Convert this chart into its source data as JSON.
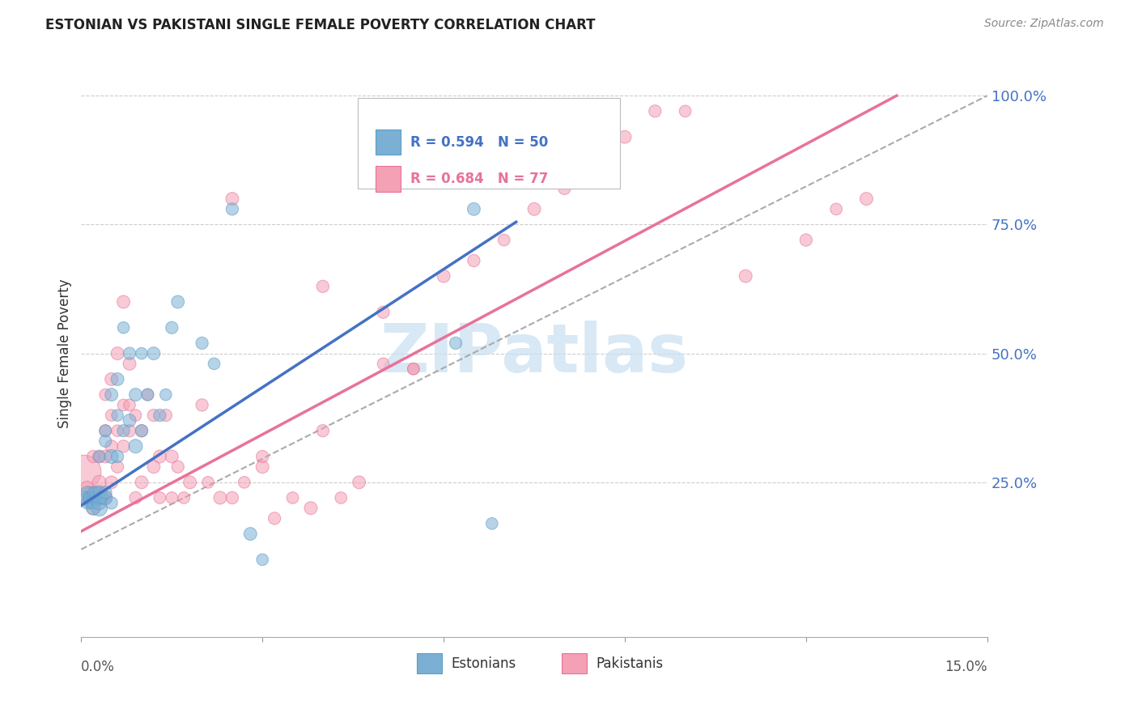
{
  "title": "ESTONIAN VS PAKISTANI SINGLE FEMALE POVERTY CORRELATION CHART",
  "source": "Source: ZipAtlas.com",
  "ylabel": "Single Female Poverty",
  "estonian_color": "#7bafd4",
  "estonian_edge_color": "#5b9fc8",
  "pakistani_color": "#f4a0b5",
  "pakistani_edge_color": "#e8729a",
  "trend_blue": "#4472C4",
  "trend_pink": "#E8729A",
  "grid_color": "#cccccc",
  "ref_line_color": "#aaaaaa",
  "background_color": "#ffffff",
  "watermark_color": "#c8dff0",
  "watermark_text": "ZIPatlas",
  "right_tick_color": "#4472C4",
  "xmin": 0.0,
  "xmax": 0.15,
  "ymin": -0.05,
  "ymax": 1.05,
  "yticks": [
    0.0,
    0.25,
    0.5,
    0.75,
    1.0
  ],
  "yticklabels": [
    "",
    "25.0%",
    "50.0%",
    "75.0%",
    "100.0%"
  ],
  "estonian_x": [
    0.0005,
    0.001,
    0.001,
    0.0012,
    0.0015,
    0.0015,
    0.002,
    0.002,
    0.002,
    0.002,
    0.0025,
    0.0025,
    0.003,
    0.003,
    0.003,
    0.003,
    0.003,
    0.0035,
    0.004,
    0.004,
    0.004,
    0.004,
    0.005,
    0.005,
    0.005,
    0.006,
    0.006,
    0.006,
    0.007,
    0.007,
    0.008,
    0.008,
    0.009,
    0.009,
    0.01,
    0.01,
    0.011,
    0.012,
    0.013,
    0.014,
    0.015,
    0.016,
    0.02,
    0.022,
    0.025,
    0.028,
    0.03,
    0.062,
    0.065,
    0.068
  ],
  "estonian_y": [
    0.22,
    0.21,
    0.23,
    0.22,
    0.21,
    0.22,
    0.2,
    0.21,
    0.22,
    0.23,
    0.22,
    0.23,
    0.2,
    0.21,
    0.22,
    0.23,
    0.3,
    0.22,
    0.22,
    0.23,
    0.33,
    0.35,
    0.21,
    0.3,
    0.42,
    0.3,
    0.38,
    0.45,
    0.35,
    0.55,
    0.37,
    0.5,
    0.32,
    0.42,
    0.35,
    0.5,
    0.42,
    0.5,
    0.38,
    0.42,
    0.55,
    0.6,
    0.52,
    0.48,
    0.78,
    0.15,
    0.1,
    0.52,
    0.78,
    0.17
  ],
  "estonian_sizes": [
    150,
    120,
    130,
    110,
    120,
    130,
    150,
    120,
    130,
    110,
    120,
    130,
    200,
    150,
    130,
    120,
    110,
    120,
    150,
    130,
    120,
    110,
    120,
    150,
    130,
    120,
    110,
    130,
    120,
    110,
    130,
    120,
    150,
    130,
    120,
    110,
    120,
    130,
    120,
    110,
    120,
    130,
    120,
    110,
    120,
    130,
    110,
    120,
    130,
    110
  ],
  "pakistani_x": [
    0.0005,
    0.001,
    0.001,
    0.0015,
    0.002,
    0.002,
    0.002,
    0.0025,
    0.003,
    0.003,
    0.003,
    0.003,
    0.0035,
    0.004,
    0.004,
    0.004,
    0.004,
    0.005,
    0.005,
    0.005,
    0.005,
    0.006,
    0.006,
    0.006,
    0.007,
    0.007,
    0.007,
    0.008,
    0.008,
    0.008,
    0.009,
    0.009,
    0.01,
    0.01,
    0.011,
    0.012,
    0.012,
    0.013,
    0.013,
    0.014,
    0.015,
    0.015,
    0.016,
    0.017,
    0.018,
    0.02,
    0.021,
    0.023,
    0.025,
    0.027,
    0.03,
    0.032,
    0.035,
    0.038,
    0.04,
    0.043,
    0.046,
    0.05,
    0.055,
    0.06,
    0.065,
    0.07,
    0.075,
    0.08,
    0.085,
    0.09,
    0.095,
    0.1,
    0.11,
    0.12,
    0.125,
    0.13,
    0.04,
    0.055,
    0.025,
    0.03,
    0.05
  ],
  "pakistani_y": [
    0.27,
    0.22,
    0.24,
    0.23,
    0.2,
    0.22,
    0.3,
    0.22,
    0.22,
    0.23,
    0.25,
    0.3,
    0.22,
    0.22,
    0.3,
    0.35,
    0.42,
    0.25,
    0.32,
    0.38,
    0.45,
    0.28,
    0.35,
    0.5,
    0.32,
    0.4,
    0.6,
    0.35,
    0.4,
    0.48,
    0.22,
    0.38,
    0.25,
    0.35,
    0.42,
    0.28,
    0.38,
    0.22,
    0.3,
    0.38,
    0.22,
    0.3,
    0.28,
    0.22,
    0.25,
    0.4,
    0.25,
    0.22,
    0.22,
    0.25,
    0.28,
    0.18,
    0.22,
    0.2,
    0.35,
    0.22,
    0.25,
    0.58,
    0.47,
    0.65,
    0.68,
    0.72,
    0.78,
    0.82,
    0.88,
    0.92,
    0.97,
    0.97,
    0.65,
    0.72,
    0.78,
    0.8,
    0.63,
    0.47,
    0.8,
    0.3,
    0.48
  ],
  "pakistani_sizes": [
    900,
    150,
    130,
    120,
    150,
    130,
    120,
    130,
    200,
    180,
    150,
    130,
    120,
    150,
    130,
    120,
    110,
    130,
    120,
    110,
    130,
    120,
    110,
    130,
    120,
    110,
    130,
    120,
    110,
    130,
    120,
    110,
    130,
    120,
    110,
    130,
    120,
    110,
    130,
    120,
    110,
    130,
    120,
    110,
    130,
    120,
    110,
    130,
    120,
    110,
    130,
    120,
    110,
    130,
    120,
    110,
    130,
    120,
    110,
    130,
    120,
    110,
    130,
    120,
    110,
    130,
    120,
    110,
    130,
    120,
    110,
    130,
    120,
    110,
    130,
    120,
    110
  ],
  "estonian_trend_x": [
    0.0,
    0.072
  ],
  "estonian_trend_y": [
    0.205,
    0.755
  ],
  "pakistani_trend_x": [
    0.0,
    0.135
  ],
  "pakistani_trend_y": [
    0.155,
    1.0
  ],
  "ref_line_x": [
    0.0,
    0.15
  ],
  "ref_line_y": [
    0.12,
    1.0
  ]
}
